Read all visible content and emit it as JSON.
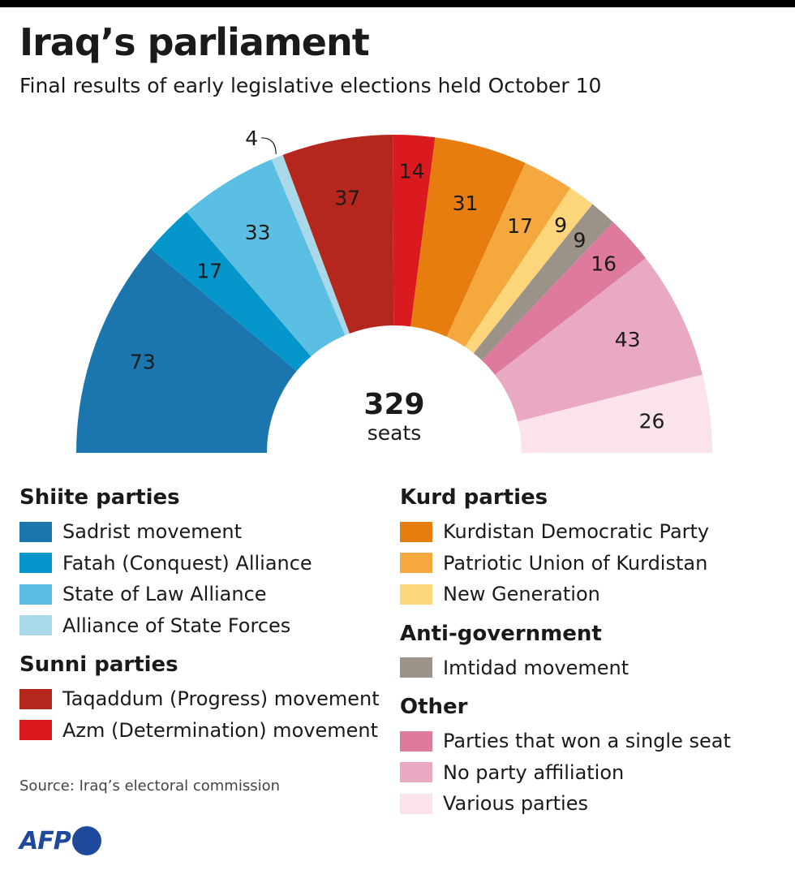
{
  "header": {
    "title": "Iraq’s parliament",
    "subtitle": "Final results of early legislative elections held October 10"
  },
  "chart_data": {
    "type": "pie",
    "variant": "semicircle",
    "total": 329,
    "total_unit": "seats",
    "series": [
      {
        "name": "Sadrist movement",
        "value": 73,
        "color": "#1b76ad",
        "group": "Shiite parties"
      },
      {
        "name": "Fatah (Conquest) Alliance",
        "value": 17,
        "color": "#0596cc",
        "group": "Shiite parties"
      },
      {
        "name": "State of Law Alliance",
        "value": 33,
        "color": "#5bbfe3",
        "group": "Shiite parties"
      },
      {
        "name": "Alliance of State Forces",
        "value": 4,
        "color": "#a9d8e8",
        "group": "Shiite parties"
      },
      {
        "name": "Taqaddum (Progress) movement",
        "value": 37,
        "color": "#b5271c",
        "group": "Sunni parties"
      },
      {
        "name": "Azm (Determination) movement",
        "value": 14,
        "color": "#da1a1e",
        "group": "Sunni parties"
      },
      {
        "name": "Kurdistan Democratic Party",
        "value": 31,
        "color": "#e67d0e",
        "group": "Kurd parties"
      },
      {
        "name": "Patriotic Union of Kurdistan",
        "value": 17,
        "color": "#f5a83e",
        "group": "Kurd parties"
      },
      {
        "name": "New Generation",
        "value": 9,
        "color": "#fdd57a",
        "group": "Kurd parties"
      },
      {
        "name": "Imtidad movement",
        "value": 9,
        "color": "#9b9288",
        "group": "Anti-government"
      },
      {
        "name": "Parties that won a single seat",
        "value": 16,
        "color": "#df7a9f",
        "group": "Other"
      },
      {
        "name": "No party affiliation",
        "value": 43,
        "color": "#eaa9c2",
        "group": "Other"
      },
      {
        "name": "Various parties",
        "value": 26,
        "color": "#fbe3ee",
        "group": "Other"
      }
    ]
  },
  "legend": {
    "left": [
      {
        "heading": "Shiite parties",
        "items": [
          {
            "label": "Sadrist movement",
            "color": "#1b76ad"
          },
          {
            "label": "Fatah (Conquest) Alliance",
            "color": "#0596cc"
          },
          {
            "label": "State of Law Alliance",
            "color": "#5bbfe3"
          },
          {
            "label": "Alliance of State Forces",
            "color": "#a9d8e8"
          }
        ]
      },
      {
        "heading": "Sunni parties",
        "items": [
          {
            "label": "Taqaddum (Progress) movement",
            "color": "#b5271c"
          },
          {
            "label": "Azm (Determination) movement",
            "color": "#da1a1e"
          }
        ]
      }
    ],
    "right": [
      {
        "heading": "Kurd parties",
        "items": [
          {
            "label": "Kurdistan Democratic Party",
            "color": "#e67d0e"
          },
          {
            "label": "Patriotic Union of Kurdistan",
            "color": "#f5a83e"
          },
          {
            "label": "New Generation",
            "color": "#fdd57a"
          }
        ]
      },
      {
        "heading": "Anti-government",
        "items": [
          {
            "label": "Imtidad movement",
            "color": "#9b9288"
          }
        ]
      },
      {
        "heading": "Other",
        "items": [
          {
            "label": "Parties that won a single seat",
            "color": "#df7a9f"
          },
          {
            "label": "No party affiliation",
            "color": "#eaa9c2"
          },
          {
            "label": "Various parties",
            "color": "#fbe3ee"
          }
        ]
      }
    ]
  },
  "footer": {
    "source": "Source: Iraq’s electoral commission",
    "logo_text": "AFP"
  }
}
